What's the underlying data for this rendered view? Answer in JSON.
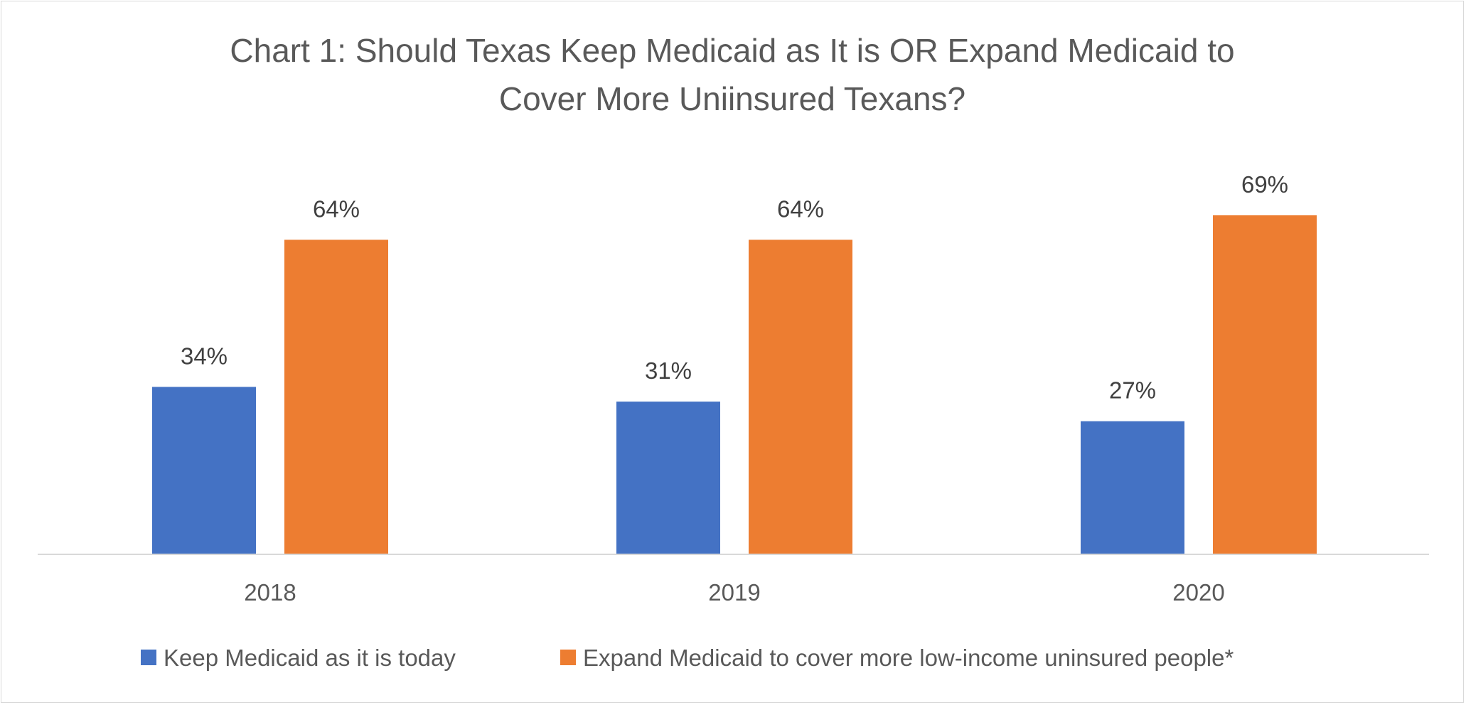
{
  "chart_data": {
    "type": "bar",
    "title": "Chart 1: Should Texas Keep Medicaid as It is OR Expand Medicaid to Cover More Uniinsured Texans?",
    "title_lines": [
      "Chart 1: Should Texas Keep Medicaid as It is OR Expand Medicaid to",
      "Cover More Uniinsured Texans?"
    ],
    "categories": [
      "2018",
      "2019",
      "2020"
    ],
    "series": [
      {
        "name": "Keep Medicaid as it is today",
        "values": [
          34,
          31,
          27
        ],
        "labels": [
          "34%",
          "31%",
          "27%"
        ],
        "color": "#4472C4"
      },
      {
        "name": "Expand Medicaid to cover more low-income uninsured people*",
        "values": [
          64,
          64,
          69
        ],
        "labels": [
          "64%",
          "64%",
          "69%"
        ],
        "color": "#ED7D31"
      }
    ],
    "xlabel": "",
    "ylabel": "",
    "ylim": [
      0,
      100
    ],
    "value_axis_visible": false,
    "grid": false,
    "legend_position": "bottom",
    "axis_line_color": "#d9d9d9"
  }
}
